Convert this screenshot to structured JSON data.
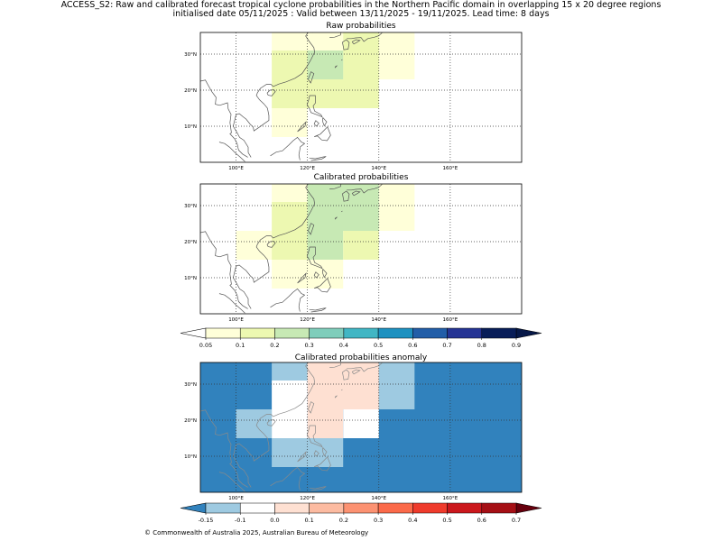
{
  "header": {
    "title_line1": "ACCESS_S2: Raw and calibrated forecast tropical cyclone probabilities in the Northern Pacific domain in overlapping 15 x 20 degree regions",
    "title_line2": "initialised date 05/11/2025 :  Valid between 13/11/2025 - 19/11/2025. Lead time: 8 days"
  },
  "panels": {
    "raw": {
      "title": "Raw probabilities"
    },
    "calibrated": {
      "title": "Calibrated probabilities"
    },
    "anomaly": {
      "title": "Calibrated probabilities anomaly"
    }
  },
  "axes": {
    "lon_labels": [
      "100°E",
      "120°E",
      "140°E",
      "160°E"
    ],
    "lat_labels": [
      "30°N",
      "20°N",
      "10°N"
    ]
  },
  "prob_colorbar": {
    "ticks": [
      "0.05",
      "0.1",
      "0.2",
      "0.3",
      "0.4",
      "0.5",
      "0.6",
      "0.7",
      "0.8",
      "0.9"
    ],
    "colors": [
      "#ffffd9",
      "#edf8b1",
      "#c7e9b4",
      "#7fcdbb",
      "#41b6c4",
      "#1d91c0",
      "#225ea8",
      "#253494",
      "#081d58"
    ],
    "under_color": "#ffffff",
    "over_color": "#061848"
  },
  "anomaly_colorbar": {
    "ticks": [
      "-0.15",
      "-0.1",
      "0.0",
      "0.1",
      "0.2",
      "0.3",
      "0.4",
      "0.5",
      "0.6",
      "0.7"
    ],
    "colors": [
      "#9ecae1",
      "#ffffff",
      "#fee0d2",
      "#fcbba1",
      "#fc9272",
      "#fb6a4a",
      "#ef3b2c",
      "#cb181d",
      "#a50f15"
    ],
    "under_color": "#3182bd",
    "over_color": "#67000d"
  },
  "footer": "© Commonwealth of Australia 2025, Australian Bureau of Meteorology",
  "chart_data": [
    {
      "type": "heatmap",
      "title": "Raw probabilities",
      "lon_range": [
        90,
        180
      ],
      "lat_range": [
        0,
        36
      ],
      "cells": [
        {
          "lon": [
            110,
            130
          ],
          "lat": [
            28,
            36
          ],
          "p": 0.07
        },
        {
          "lon": [
            130,
            150
          ],
          "lat": [
            28,
            36
          ],
          "p": 0.07
        },
        {
          "lon": [
            110,
            130
          ],
          "lat": [
            23,
            31
          ],
          "p": 0.12
        },
        {
          "lon": [
            130,
            150
          ],
          "lat": [
            23,
            28
          ],
          "p": 0.07
        },
        {
          "lon": [
            110,
            140
          ],
          "lat": [
            15,
            23
          ],
          "p": 0.12
        },
        {
          "lon": [
            110,
            120
          ],
          "lat": [
            7,
            15
          ],
          "p": 0.07
        },
        {
          "lon": [
            130,
            140
          ],
          "lat": [
            23,
            36
          ],
          "p": 0.12
        },
        {
          "lon": [
            120,
            130
          ],
          "lat": [
            23,
            31
          ],
          "p": 0.22
        }
      ]
    },
    {
      "type": "heatmap",
      "title": "Calibrated probabilities",
      "lon_range": [
        90,
        180
      ],
      "lat_range": [
        0,
        36
      ],
      "cells": [
        {
          "lon": [
            110,
            130
          ],
          "lat": [
            31,
            36
          ],
          "p": 0.07
        },
        {
          "lon": [
            140,
            150
          ],
          "lat": [
            23,
            36
          ],
          "p": 0.07
        },
        {
          "lon": [
            100,
            110
          ],
          "lat": [
            15,
            23
          ],
          "p": 0.07
        },
        {
          "lon": [
            110,
            130
          ],
          "lat": [
            7,
            15
          ],
          "p": 0.07
        },
        {
          "lon": [
            110,
            120
          ],
          "lat": [
            15,
            31
          ],
          "p": 0.12
        },
        {
          "lon": [
            120,
            140
          ],
          "lat": [
            23,
            36
          ],
          "p": 0.22
        },
        {
          "lon": [
            120,
            130
          ],
          "lat": [
            15,
            23
          ],
          "p": 0.22
        },
        {
          "lon": [
            130,
            140
          ],
          "lat": [
            15,
            23
          ],
          "p": 0.12
        }
      ]
    },
    {
      "type": "heatmap",
      "title": "Calibrated probabilities anomaly",
      "lon_range": [
        90,
        180
      ],
      "lat_range": [
        0,
        36
      ],
      "background": -0.2,
      "cells": [
        {
          "lon": [
            110,
            120
          ],
          "lat": [
            31,
            36
          ],
          "p": -0.12
        },
        {
          "lon": [
            110,
            130
          ],
          "lat": [
            7,
            15
          ],
          "p": -0.12
        },
        {
          "lon": [
            100,
            110
          ],
          "lat": [
            15,
            23
          ],
          "p": -0.12
        },
        {
          "lon": [
            140,
            150
          ],
          "lat": [
            23,
            36
          ],
          "p": -0.12
        },
        {
          "lon": [
            110,
            120
          ],
          "lat": [
            15,
            31
          ],
          "p": -0.05
        },
        {
          "lon": [
            120,
            130
          ],
          "lat": [
            36,
            31
          ],
          "p": 0.05
        },
        {
          "lon": [
            120,
            140
          ],
          "lat": [
            23,
            36
          ],
          "p": 0.05
        },
        {
          "lon": [
            120,
            130
          ],
          "lat": [
            15,
            23
          ],
          "p": 0.05
        },
        {
          "lon": [
            130,
            140
          ],
          "lat": [
            15,
            23
          ],
          "p": -0.05
        }
      ]
    }
  ]
}
